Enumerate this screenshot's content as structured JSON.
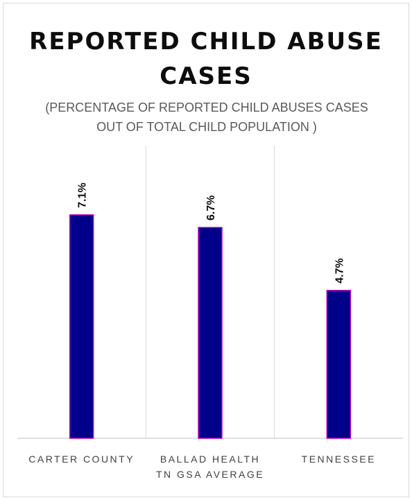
{
  "chart_data": {
    "type": "bar",
    "title": "REPORTED CHILD ABUSE CASES",
    "subtitle": "(PERCENTAGE OF REPORTED CHILD ABUSES CASES OUT OF TOTAL CHILD POPULATION )",
    "categories": [
      [
        "CARTER COUNTY"
      ],
      [
        "BALLAD HEALTH",
        "TN GSA AVERAGE"
      ],
      [
        "TENNESSEE"
      ]
    ],
    "values": [
      7.1,
      6.7,
      4.7
    ],
    "data_labels": [
      "7.1%",
      "6.7%",
      "4.7%"
    ],
    "ylim": [
      0,
      9.3
    ],
    "grid": "vertical separators between categories",
    "legend": "none"
  },
  "colors": {
    "bar_fill": "#00008B",
    "bar_outline": "#C000C0",
    "gridline": "#d9d9d9",
    "axis": "#bfbfbf"
  }
}
